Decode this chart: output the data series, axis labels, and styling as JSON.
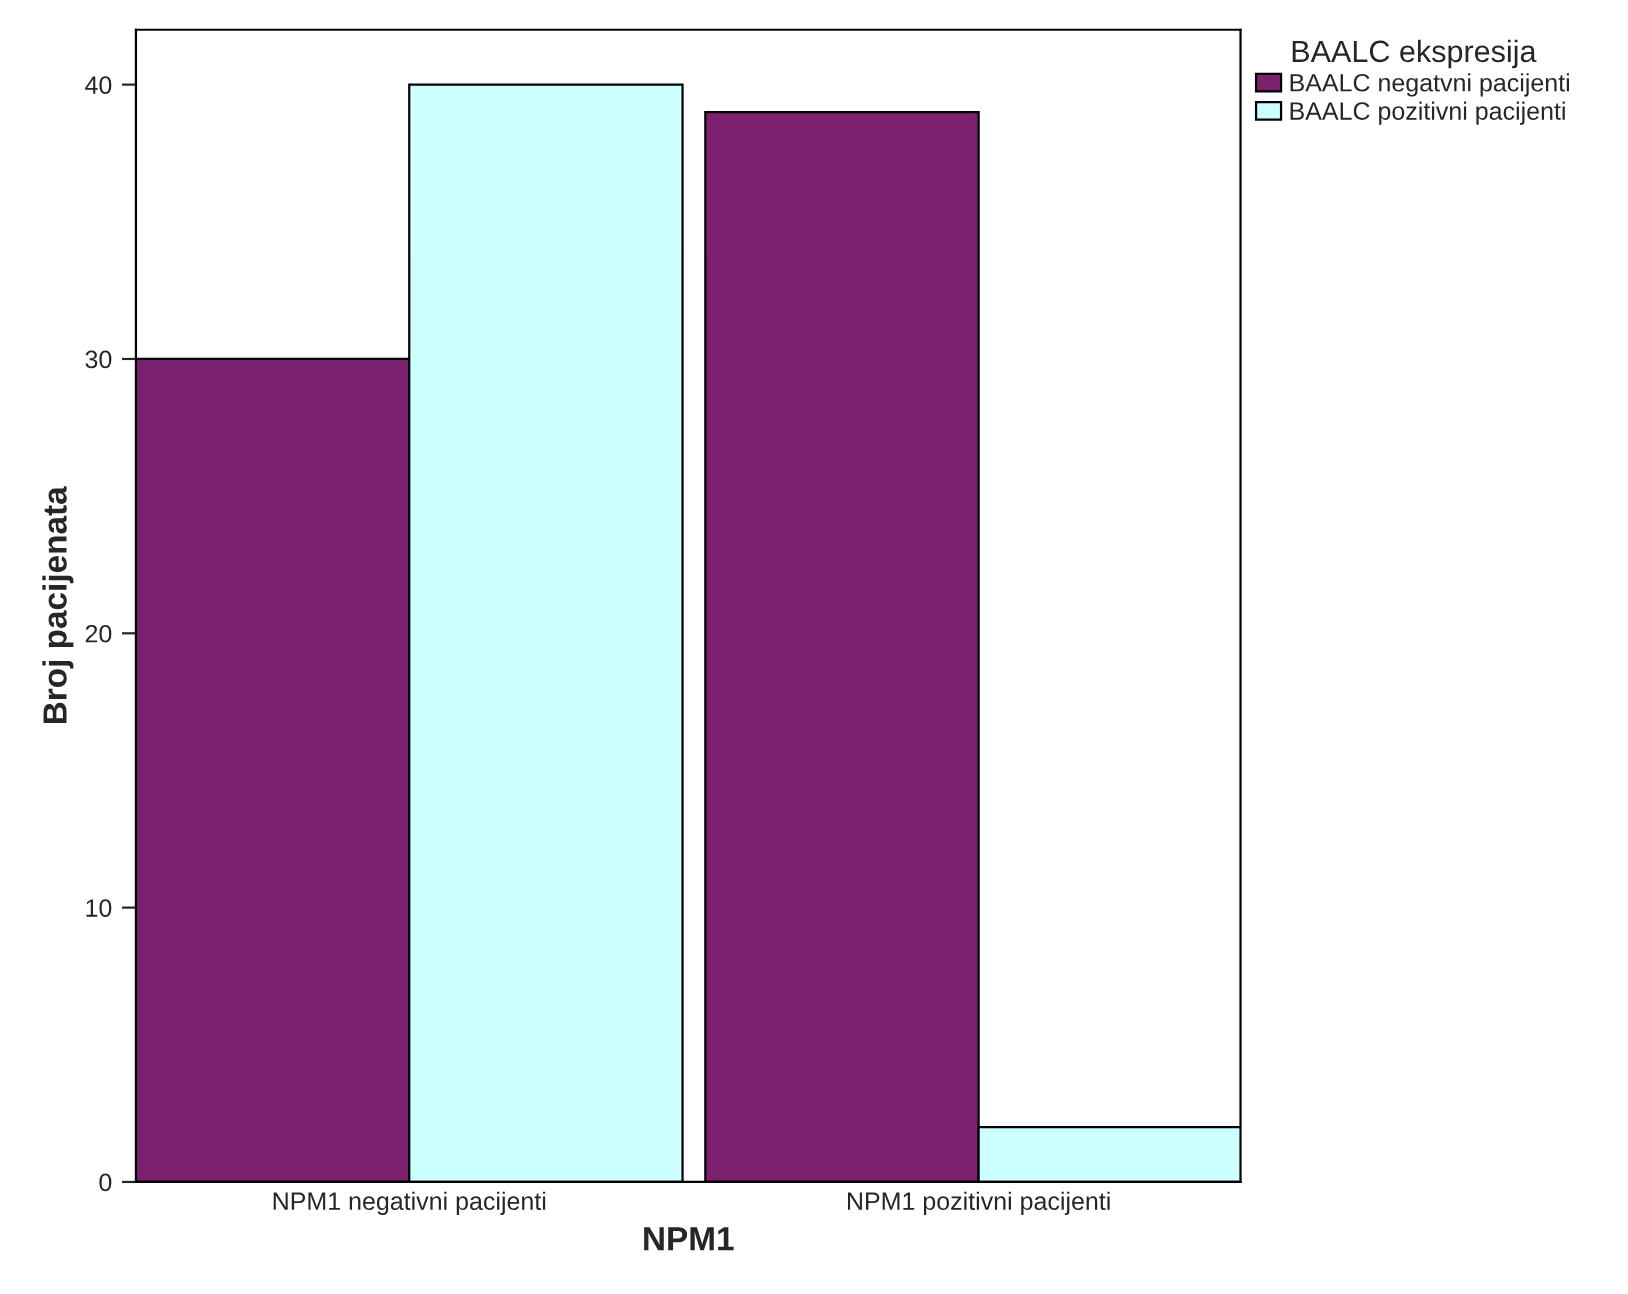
{
  "chart_data": {
    "type": "bar",
    "xlabel": "NPM1",
    "ylabel": "Broj pacijenata",
    "legend_title": "BAALC ekspresija",
    "categories": [
      "NPM1 negativni pacijenti",
      "NPM1 pozitivni pacijenti"
    ],
    "series": [
      {
        "name": "BAALC negatvni pacijenti",
        "color": "#7b2170",
        "values": [
          30,
          39
        ]
      },
      {
        "name": "BAALC pozitivni pacijenti",
        "color": "#ccffff",
        "values": [
          40,
          2
        ]
      }
    ],
    "ylim": [
      0,
      42
    ],
    "yticks": [
      0,
      10,
      20,
      30,
      40
    ],
    "grid": false,
    "legend": "top right"
  }
}
